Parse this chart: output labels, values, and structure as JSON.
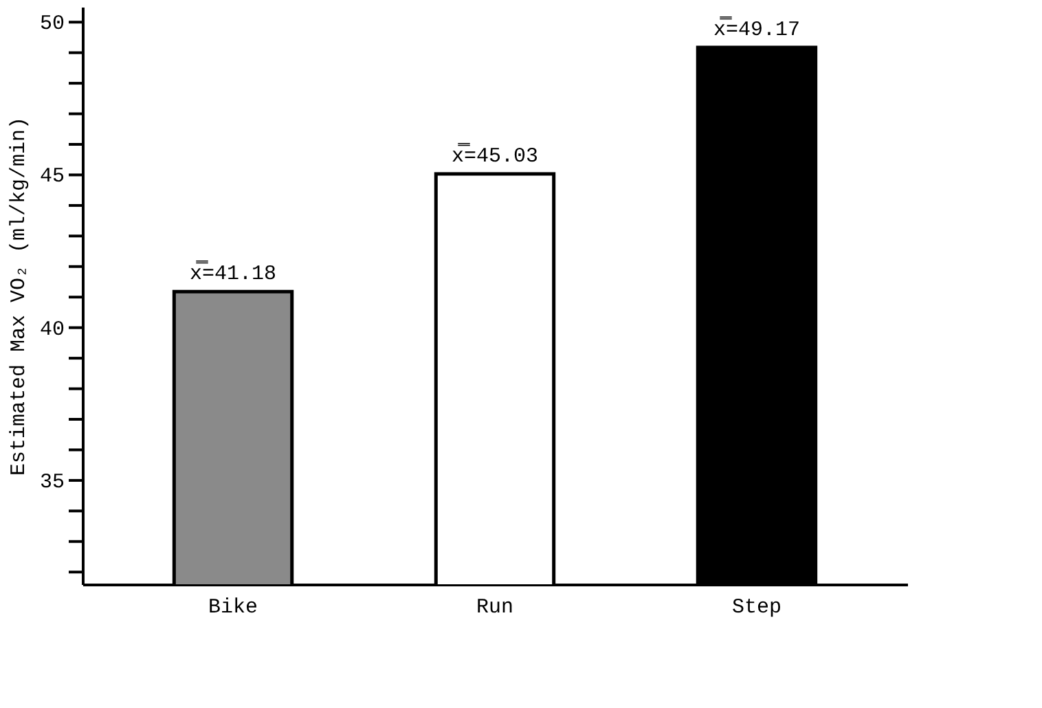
{
  "chart_data": {
    "type": "bar",
    "ylabel": "Estimated Max VO₂ (ml/kg/min)",
    "categories": [
      "Bike",
      "Run",
      "Step"
    ],
    "values": [
      41.18,
      45.03,
      49.17
    ],
    "colors": [
      "#8a8a8a",
      "#ffffff",
      "#000000"
    ],
    "value_labels": [
      "x̿=41.18",
      "x̿=45.03",
      "x̿=49.17"
    ],
    "ylim": [
      31.6,
      50.5
    ],
    "yticks": [
      {
        "value": 32,
        "label": null
      },
      {
        "value": 33,
        "label": null
      },
      {
        "value": 34,
        "label": null
      },
      35,
      {
        "value": 36,
        "label": null
      },
      {
        "value": 37,
        "label": null
      },
      {
        "value": 38,
        "label": null
      },
      {
        "value": 39,
        "label": null
      },
      40,
      {
        "value": 41,
        "label": null
      },
      {
        "value": 42,
        "label": null
      },
      {
        "value": 43,
        "label": null
      },
      {
        "value": 44,
        "label": null
      },
      45,
      {
        "value": 46,
        "label": null
      },
      {
        "value": 47,
        "label": null
      },
      {
        "value": 48,
        "label": null
      },
      {
        "value": 49,
        "label": null
      },
      50
    ],
    "grid": false
  }
}
